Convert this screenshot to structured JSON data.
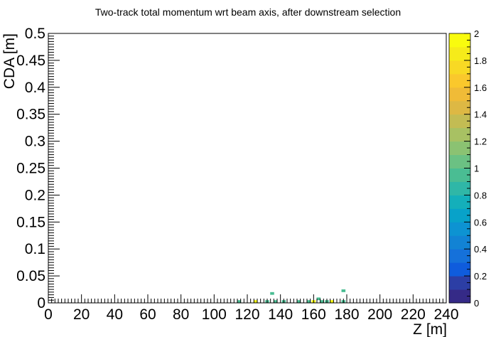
{
  "chart_data": {
    "type": "heatmap",
    "title": "Two-track total momentum wrt beam axis, after downstream selection",
    "xlabel": "Z [m]",
    "ylabel": "CDA [m]",
    "xlim": [
      0,
      240
    ],
    "ylim": [
      0,
      0.5
    ],
    "zlim": [
      0,
      2
    ],
    "x_ticks": [
      "0",
      "20",
      "40",
      "60",
      "80",
      "100",
      "120",
      "140",
      "160",
      "180",
      "200",
      "220",
      "240"
    ],
    "y_ticks": [
      "0",
      "0.05",
      "0.1",
      "0.15",
      "0.2",
      "0.25",
      "0.3",
      "0.35",
      "0.4",
      "0.45",
      "0.5"
    ],
    "z_ticks": [
      "0",
      "0.2",
      "0.4",
      "0.6",
      "0.8",
      "1",
      "1.2",
      "1.4",
      "1.6",
      "1.8",
      "2"
    ],
    "bin_width": {
      "x": 2.4,
      "y": 0.005
    },
    "bins": [
      {
        "x": 115,
        "y": 0.0025,
        "z": 1
      },
      {
        "x": 125,
        "y": 0.0025,
        "z": 2
      },
      {
        "x": 132,
        "y": 0.0025,
        "z": 1
      },
      {
        "x": 135,
        "y": 0.0175,
        "z": 1
      },
      {
        "x": 137,
        "y": 0.0025,
        "z": 1
      },
      {
        "x": 142,
        "y": 0.0025,
        "z": 1
      },
      {
        "x": 151,
        "y": 0.0025,
        "z": 1
      },
      {
        "x": 157,
        "y": 0.0025,
        "z": 1
      },
      {
        "x": 160,
        "y": 0.0025,
        "z": 2
      },
      {
        "x": 163,
        "y": 0.0075,
        "z": 1
      },
      {
        "x": 165,
        "y": 0.0025,
        "z": 1
      },
      {
        "x": 168,
        "y": 0.0025,
        "z": 1
      },
      {
        "x": 171,
        "y": 0.0025,
        "z": 2
      },
      {
        "x": 178,
        "y": 0.0025,
        "z": 1
      },
      {
        "x": 178,
        "y": 0.0225,
        "z": 1
      }
    ],
    "palette": [
      "#352a87",
      "#2c3ea5",
      "#0f5cdd",
      "#1571da",
      "#1283d4",
      "#0d93d2",
      "#08a2c9",
      "#14afba",
      "#2fb7a7",
      "#4abd93",
      "#6bc183",
      "#8bc272",
      "#a8c163",
      "#c3bc53",
      "#ddb844",
      "#f0bb37",
      "#fac82c",
      "#f8d924",
      "#f6eb1a",
      "#f9fb0e"
    ],
    "grid": false,
    "colorbar": "right"
  }
}
